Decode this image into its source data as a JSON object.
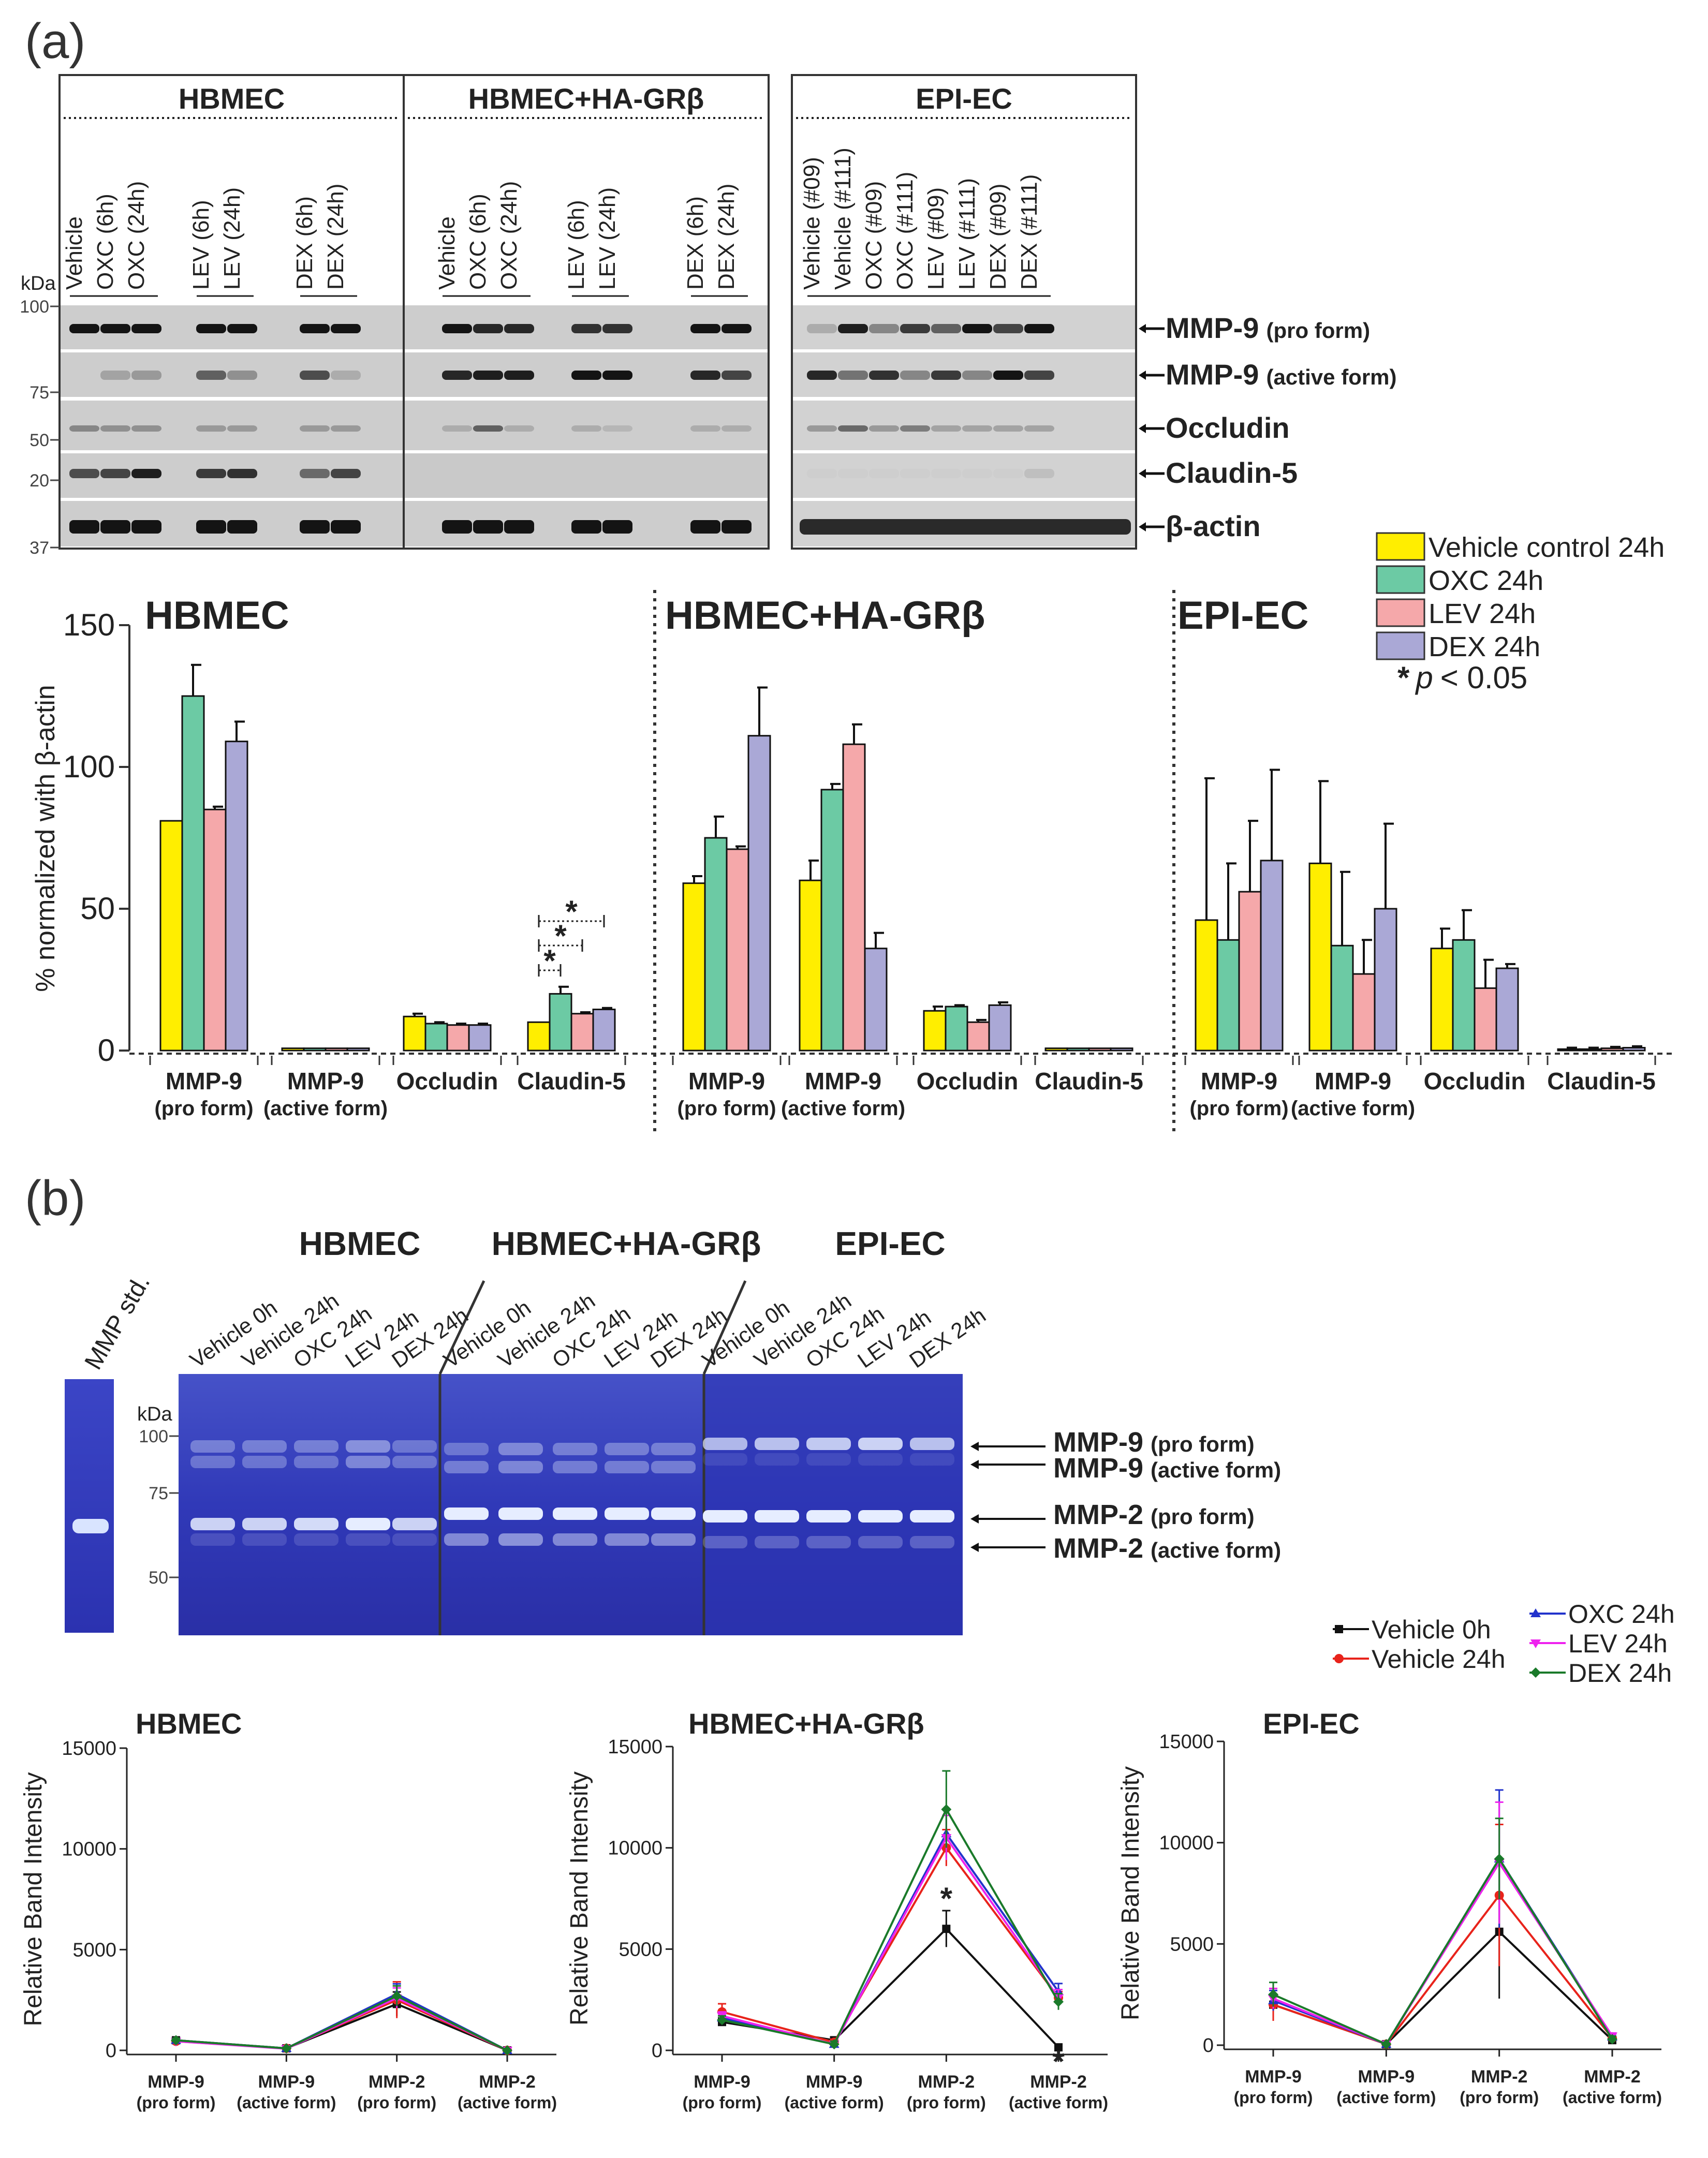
{
  "panel_a": {
    "label": "(a)",
    "kda": "kDa",
    "blot_groups": [
      {
        "title": "HBMEC",
        "lanes": [
          "Vehicle",
          "OXC (6h)",
          "OXC (24h)",
          "",
          "LEV (6h)",
          "LEV (24h)",
          "",
          "DEX (6h)",
          "DEX (24h)"
        ]
      },
      {
        "title": "HBMEC+HA-GRβ",
        "lanes": [
          "Vehicle",
          "OXC (6h)",
          "OXC (24h)",
          "",
          "LEV (6h)",
          "LEV (24h)",
          "",
          "DEX (6h)",
          "DEX (24h)"
        ]
      },
      {
        "title": "EPI-EC",
        "lanes": [
          "Vehicle (#09)",
          "Vehicle (#111)",
          "OXC (#09)",
          "OXC (#111)",
          "LEV (#09)",
          "LEV (#111)",
          "DEX (#09)",
          "DEX (#111)"
        ]
      }
    ],
    "markers": [
      "100",
      "75",
      "50",
      "20",
      "37"
    ],
    "band_labels": [
      {
        "main": "MMP-9",
        "sub": "(pro form)"
      },
      {
        "main": "MMP-9",
        "sub": "(active form)"
      },
      {
        "main": "Occludin",
        "sub": ""
      },
      {
        "main": "Claudin-5",
        "sub": ""
      },
      {
        "main": "β-actin",
        "sub": ""
      }
    ],
    "legend": [
      {
        "label": "Vehicle control 24h",
        "color": "#ffee00"
      },
      {
        "label": "OXC 24h",
        "color": "#6ccaa4"
      },
      {
        "label": "LEV 24h",
        "color": "#f5a8aa"
      },
      {
        "label": "DEX 24h",
        "color": "#aaa8d6"
      }
    ],
    "sig_star": "*",
    "sig_p": "p",
    "sig_text": "< 0.05"
  },
  "panel_b": {
    "label": "(b)",
    "kda": "kDa",
    "std_label": "MMP std.",
    "gel_groups": [
      {
        "title": "HBMEC",
        "lanes": [
          "Vehicle 0h",
          "Vehicle 24h",
          "OXC 24h",
          "LEV 24h",
          "DEX 24h"
        ]
      },
      {
        "title": "HBMEC+HA-GRβ",
        "lanes": [
          "Vehicle 0h",
          "Vehicle 24h",
          "OXC 24h",
          "LEV 24h",
          "DEX 24h"
        ]
      },
      {
        "title": "EPI-EC",
        "lanes": [
          "Vehicle 0h",
          "Vehicle 24h",
          "OXC 24h",
          "LEV 24h",
          "DEX 24h"
        ]
      }
    ],
    "markers": [
      "100",
      "75",
      "50"
    ],
    "band_labels": [
      {
        "main": "MMP-9",
        "sub": "(pro form)"
      },
      {
        "main": "MMP-9",
        "sub": "(active form)"
      },
      {
        "main": "MMP-2",
        "sub": "(pro form)"
      },
      {
        "main": "MMP-2",
        "sub": "(active form)"
      }
    ],
    "legend": [
      {
        "label": "Vehicle 0h",
        "color": "#111111"
      },
      {
        "label": "Vehicle 24h",
        "color": "#e8231b"
      },
      {
        "label": "OXC 24h",
        "color": "#2233cc"
      },
      {
        "label": "LEV 24h",
        "color": "#ee22ee"
      },
      {
        "label": "DEX 24h",
        "color": "#1a7a2a"
      }
    ]
  },
  "chart_data": [
    {
      "type": "bar",
      "title": "HBMEC / HBMEC+HA-GRβ / EPI-EC",
      "ylabel": "% normalized with β-actin",
      "ylim": [
        0,
        150
      ],
      "yticks": [
        "0",
        "50",
        "100",
        "150"
      ],
      "series_names": [
        "Vehicle control 24h",
        "OXC 24h",
        "LEV 24h",
        "DEX 24h"
      ],
      "groups": [
        {
          "name": "HBMEC",
          "categories": [
            {
              "label": "MMP-9",
              "sub": "(pro form)",
              "values": [
                81,
                125,
                85,
                109
              ],
              "errors": [
                0,
                11,
                1,
                7
              ]
            },
            {
              "label": "MMP-9",
              "sub": "(active form)",
              "values": [
                0.8,
                0.8,
                0.8,
                0.8
              ],
              "errors": [
                0,
                0,
                0,
                0
              ]
            },
            {
              "label": "Occludin",
              "sub": "",
              "values": [
                12,
                9.5,
                9,
                9
              ],
              "errors": [
                1,
                0.5,
                0.5,
                0.5
              ]
            },
            {
              "label": "Claudin-5",
              "sub": "",
              "values": [
                10,
                20,
                13,
                14.5
              ],
              "errors": [
                0,
                2.5,
                0.5,
                0.5
              ]
            }
          ]
        },
        {
          "name": "HBMEC+HA-GRβ",
          "categories": [
            {
              "label": "MMP-9",
              "sub": "(pro form)",
              "values": [
                59,
                75,
                71,
                111
              ],
              "errors": [
                2.5,
                7.5,
                1,
                17
              ]
            },
            {
              "label": "MMP-9",
              "sub": "(active form)",
              "values": [
                60,
                92,
                108,
                36
              ],
              "errors": [
                7,
                2,
                7,
                5.5
              ]
            },
            {
              "label": "Occludin",
              "sub": "",
              "values": [
                14,
                15.5,
                10,
                16
              ],
              "errors": [
                1.5,
                0.5,
                0.8,
                1
              ]
            },
            {
              "label": "Claudin-5",
              "sub": "",
              "values": [
                0.8,
                0.8,
                0.8,
                0.8
              ],
              "errors": [
                0,
                0,
                0,
                0
              ]
            }
          ]
        },
        {
          "name": "EPI-EC",
          "categories": [
            {
              "label": "MMP-9",
              "sub": "(pro form)",
              "values": [
                46,
                39,
                56,
                67
              ],
              "errors": [
                50,
                27,
                25,
                32
              ]
            },
            {
              "label": "MMP-9",
              "sub": "(active form)",
              "values": [
                66,
                37,
                27,
                50
              ],
              "errors": [
                29,
                26,
                12,
                30
              ]
            },
            {
              "label": "Occludin",
              "sub": "",
              "values": [
                36,
                39,
                22,
                29
              ],
              "errors": [
                7,
                10.5,
                10,
                1.5
              ]
            },
            {
              "label": "Claudin-5",
              "sub": "",
              "values": [
                0.5,
                0.5,
                0.8,
                1
              ],
              "errors": [
                0.5,
                0.5,
                0.5,
                0.5
              ]
            }
          ]
        }
      ]
    },
    {
      "type": "line",
      "title": "HBMEC",
      "ylabel": "Relative Band Intensity",
      "ylim": [
        0,
        15000
      ],
      "yticks": [
        "0",
        "5000",
        "10000",
        "15000"
      ],
      "x": [
        {
          "l1": "MMP-9",
          "l2": "(pro form)"
        },
        {
          "l1": "MMP-9",
          "l2": "(active form)"
        },
        {
          "l1": "MMP-2",
          "l2": "(pro form)"
        },
        {
          "l1": "MMP-2",
          "l2": "(active form)"
        }
      ],
      "series": [
        {
          "name": "Vehicle 0h",
          "values": [
            500,
            100,
            2300,
            0
          ],
          "errors": [
            100,
            50,
            600,
            30
          ]
        },
        {
          "name": "Vehicle 24h",
          "values": [
            450,
            100,
            2500,
            0
          ],
          "errors": [
            100,
            50,
            900,
            30
          ]
        },
        {
          "name": "OXC 24h",
          "values": [
            500,
            100,
            2800,
            0
          ],
          "errors": [
            100,
            50,
            500,
            30
          ]
        },
        {
          "name": "LEV 24h",
          "values": [
            450,
            80,
            2600,
            0
          ],
          "errors": [
            100,
            50,
            500,
            30
          ]
        },
        {
          "name": "DEX 24h",
          "values": [
            500,
            100,
            2700,
            0
          ],
          "errors": [
            100,
            50,
            500,
            30
          ]
        }
      ],
      "stars": []
    },
    {
      "type": "line",
      "title": "HBMEC+HA-GRβ",
      "ylabel": "Relative Band Intensity",
      "ylim": [
        0,
        15000
      ],
      "yticks": [
        "0",
        "5000",
        "10000",
        "15000"
      ],
      "x": [
        {
          "l1": "MMP-9",
          "l2": "(pro form)"
        },
        {
          "l1": "MMP-9",
          "l2": "(active form)"
        },
        {
          "l1": "MMP-2",
          "l2": "(pro form)"
        },
        {
          "l1": "MMP-2",
          "l2": "(active form)"
        }
      ],
      "series": [
        {
          "name": "Vehicle 0h",
          "values": [
            1400,
            500,
            6000,
            150
          ],
          "errors": [
            200,
            150,
            900,
            80
          ]
        },
        {
          "name": "Vehicle 24h",
          "values": [
            1900,
            400,
            10000,
            2600
          ],
          "errors": [
            400,
            150,
            900,
            300
          ]
        },
        {
          "name": "OXC 24h",
          "values": [
            1600,
            300,
            10700,
            2900
          ],
          "errors": [
            200,
            150,
            1200,
            400
          ]
        },
        {
          "name": "LEV 24h",
          "values": [
            1700,
            300,
            10500,
            2600
          ],
          "errors": [
            200,
            150,
            1100,
            400
          ]
        },
        {
          "name": "DEX 24h",
          "values": [
            1500,
            300,
            11900,
            2400
          ],
          "errors": [
            200,
            150,
            1900,
            400
          ]
        }
      ],
      "stars": [
        {
          "x_index": 2,
          "value": 6000,
          "text": "*"
        },
        {
          "x_index": 3,
          "value": 150,
          "text": "*"
        }
      ]
    },
    {
      "type": "line",
      "title": "EPI-EC",
      "ylabel": "Relative Band Intensity",
      "ylim": [
        0,
        15000
      ],
      "yticks": [
        "0",
        "5000",
        "10000",
        "15000"
      ],
      "x": [
        {
          "l1": "MMP-9",
          "l2": "(pro form)"
        },
        {
          "l1": "MMP-9",
          "l2": "(active form)"
        },
        {
          "l1": "MMP-2",
          "l2": "(pro form)"
        },
        {
          "l1": "MMP-2",
          "l2": "(active form)"
        }
      ],
      "series": [
        {
          "name": "Vehicle 0h",
          "values": [
            2000,
            50,
            5600,
            250
          ],
          "errors": [
            500,
            50,
            3300,
            100
          ]
        },
        {
          "name": "Vehicle 24h",
          "values": [
            2000,
            50,
            7400,
            350
          ],
          "errors": [
            800,
            50,
            3500,
            100
          ]
        },
        {
          "name": "OXC 24h",
          "values": [
            2200,
            50,
            9200,
            400
          ],
          "errors": [
            500,
            50,
            3400,
            150
          ]
        },
        {
          "name": "LEV 24h",
          "values": [
            2300,
            50,
            9000,
            450
          ],
          "errors": [
            500,
            50,
            3000,
            150
          ]
        },
        {
          "name": "DEX 24h",
          "values": [
            2500,
            50,
            9200,
            300
          ],
          "errors": [
            600,
            50,
            2000,
            150
          ]
        }
      ],
      "stars": []
    }
  ]
}
